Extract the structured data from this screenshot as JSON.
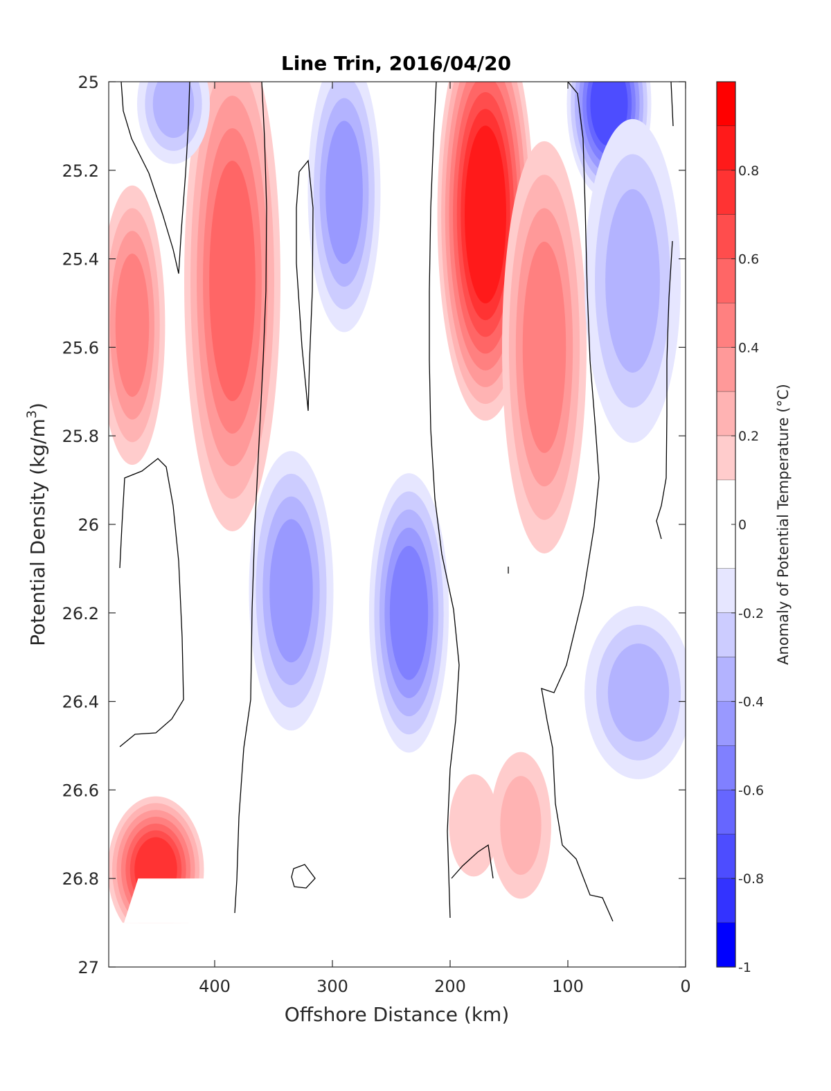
{
  "chart_data": {
    "type": "heatmap",
    "subtype": "filled-contour",
    "title": "Line Trin, 2016/04/20",
    "xlabel": "Offshore Distance (km)",
    "ylabel_parts": [
      "Potential Density (kg/m",
      "3",
      ")"
    ],
    "colorbar_label": "Anomaly of Potential Temperature (°C)",
    "xlim": [
      490,
      0
    ],
    "ylim": [
      25,
      27
    ],
    "y_reversed": true,
    "x_ticks": [
      400,
      300,
      200,
      100,
      0
    ],
    "x_tick_labels": [
      "400",
      "300",
      "200",
      "100",
      "0"
    ],
    "y_ticks": [
      25,
      25.2,
      25.4,
      25.6,
      25.8,
      26,
      26.2,
      26.4,
      26.6,
      26.8,
      27
    ],
    "y_tick_labels": [
      "25",
      "25.2",
      "25.4",
      "25.6",
      "25.8",
      "26",
      "26.2",
      "26.4",
      "26.6",
      "26.8",
      "27"
    ],
    "colorbar_ticks": [
      0.8,
      0.6,
      0.4,
      0.2,
      0,
      -0.2,
      -0.4,
      -0.6,
      -0.8,
      -1
    ],
    "colorbar_tick_labels": [
      "0.8",
      "0.6",
      "0.4",
      "0.2",
      "0",
      "-0.2",
      "-0.4",
      "-0.6",
      "-0.8",
      "-1"
    ],
    "colorbar_range": [
      -1,
      1
    ],
    "colorbar_levels": [
      {
        "range": [
          0.9,
          1.0
        ],
        "color": "#ff0000"
      },
      {
        "range": [
          0.8,
          0.9
        ],
        "color": "#ff1a1a"
      },
      {
        "range": [
          0.7,
          0.8
        ],
        "color": "#ff3333"
      },
      {
        "range": [
          0.6,
          0.7
        ],
        "color": "#ff4d4d"
      },
      {
        "range": [
          0.5,
          0.6
        ],
        "color": "#ff6666"
      },
      {
        "range": [
          0.4,
          0.5
        ],
        "color": "#ff8080"
      },
      {
        "range": [
          0.3,
          0.4
        ],
        "color": "#ff9999"
      },
      {
        "range": [
          0.2,
          0.3
        ],
        "color": "#ffb3b3"
      },
      {
        "range": [
          0.1,
          0.2
        ],
        "color": "#ffcccc"
      },
      {
        "range": [
          -0.1,
          0.1
        ],
        "color": "#ffffff"
      },
      {
        "range": [
          -0.2,
          -0.1
        ],
        "color": "#e6e6ff"
      },
      {
        "range": [
          -0.3,
          -0.2
        ],
        "color": "#ccccff"
      },
      {
        "range": [
          -0.4,
          -0.3
        ],
        "color": "#b3b3ff"
      },
      {
        "range": [
          -0.5,
          -0.4
        ],
        "color": "#9999ff"
      },
      {
        "range": [
          -0.6,
          -0.5
        ],
        "color": "#8080ff"
      },
      {
        "range": [
          -0.7,
          -0.6
        ],
        "color": "#6666ff"
      },
      {
        "range": [
          -0.8,
          -0.7
        ],
        "color": "#4d4dff"
      },
      {
        "range": [
          -0.9,
          -0.8
        ],
        "color": "#3333ff"
      },
      {
        "range": [
          -1.0,
          -0.9
        ],
        "color": "#0000ff"
      }
    ],
    "grid": false,
    "zero_contour_color": "#000000",
    "anomaly_features": [
      {
        "name": "warm-core-west-upper",
        "x": 470,
        "y": 25.55,
        "rx": 22,
        "ry": 0.3,
        "value": 0.5
      },
      {
        "name": "warm-core-400km",
        "x": 385,
        "y": 25.45,
        "rx": 35,
        "ry": 0.55,
        "value": 0.6
      },
      {
        "name": "warm-core-west-deep",
        "x": 450,
        "y": 26.78,
        "rx": 35,
        "ry": 0.15,
        "value": 0.75
      },
      {
        "name": "cold-core-west-top",
        "x": 435,
        "y": 25.05,
        "rx": 25,
        "ry": 0.12,
        "value": -0.4
      },
      {
        "name": "cold-core-290km",
        "x": 290,
        "y": 25.25,
        "rx": 25,
        "ry": 0.3,
        "value": -0.5
      },
      {
        "name": "cold-core-330km",
        "x": 335,
        "y": 26.15,
        "rx": 30,
        "ry": 0.3,
        "value": -0.5
      },
      {
        "name": "cold-core-230km",
        "x": 235,
        "y": 26.2,
        "rx": 28,
        "ry": 0.3,
        "value": -0.6
      },
      {
        "name": "warm-core-170km",
        "x": 170,
        "y": 25.3,
        "rx": 35,
        "ry": 0.45,
        "value": 0.85
      },
      {
        "name": "warm-core-120km",
        "x": 120,
        "y": 25.6,
        "rx": 30,
        "ry": 0.45,
        "value": 0.5
      },
      {
        "name": "cold-core-nearshore-top",
        "x": 65,
        "y": 25.05,
        "rx": 30,
        "ry": 0.2,
        "value": -0.75
      },
      {
        "name": "cold-core-nearshore-mid",
        "x": 45,
        "y": 25.45,
        "rx": 35,
        "ry": 0.35,
        "value": -0.4
      },
      {
        "name": "cold-core-nearshore-deep",
        "x": 40,
        "y": 26.38,
        "rx": 40,
        "ry": 0.18,
        "value": -0.45
      },
      {
        "name": "warm-core-140km-deep",
        "x": 140,
        "y": 26.68,
        "rx": 20,
        "ry": 0.15,
        "value": 0.35
      },
      {
        "name": "warm-core-180km-deep",
        "x": 180,
        "y": 26.68,
        "rx": 15,
        "ry": 0.1,
        "value": 0.2
      }
    ]
  }
}
